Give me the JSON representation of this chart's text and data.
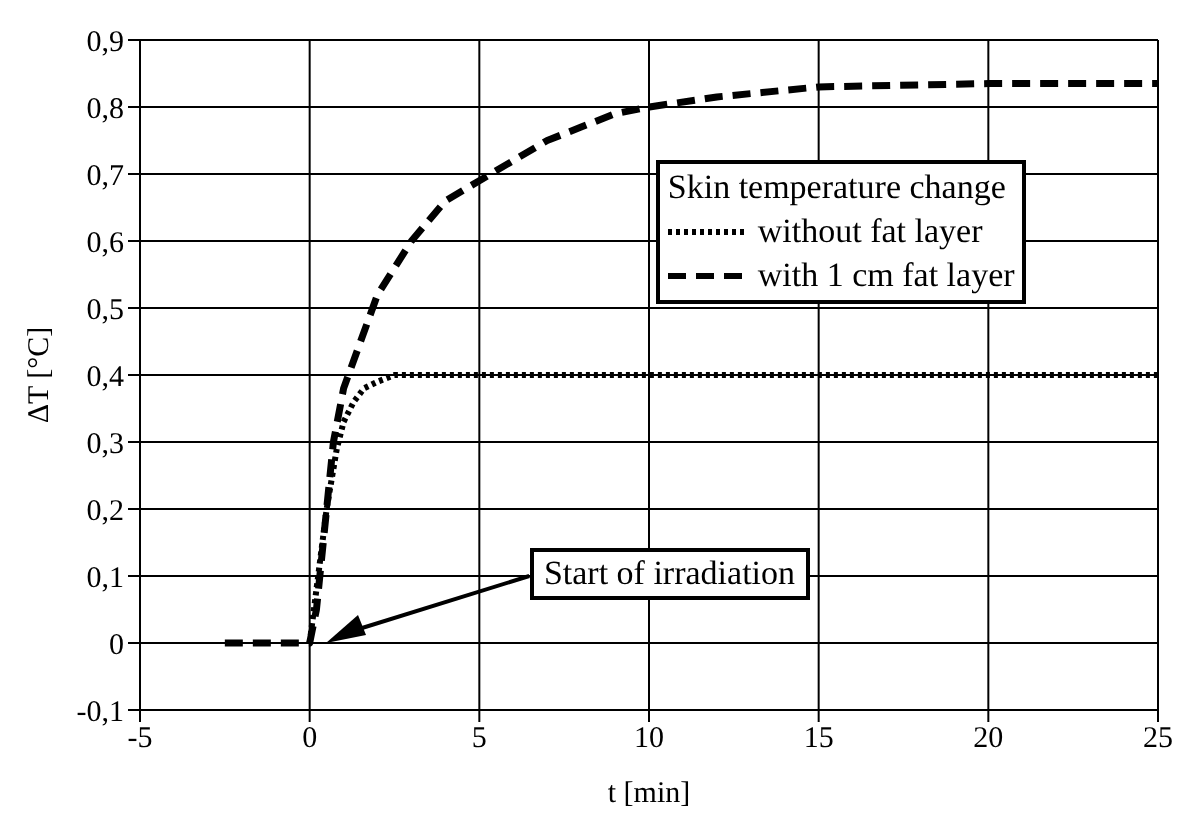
{
  "chart_data": {
    "type": "line",
    "xlabel": "t [min]",
    "ylabel": "ΔT [°C]",
    "legend_title": "Skin temperature change",
    "legend": "right",
    "grid": true,
    "marker": "none",
    "xlim": [
      -5,
      25
    ],
    "xticks": [
      -5,
      0,
      5,
      10,
      15,
      20,
      25
    ],
    "ylim": [
      -0.1,
      0.9
    ],
    "yticks": [
      {
        "value": -0.1,
        "label": "-0,1"
      },
      {
        "value": 0,
        "label": "0"
      },
      {
        "value": 0.1,
        "label": "0,1"
      },
      {
        "value": 0.2,
        "label": "0,2"
      },
      {
        "value": 0.3,
        "label": "0,3"
      },
      {
        "value": 0.4,
        "label": "0,4"
      },
      {
        "value": 0.5,
        "label": "0,5"
      },
      {
        "value": 0.6,
        "label": "0,6"
      },
      {
        "value": 0.7,
        "label": "0,7"
      },
      {
        "value": 0.8,
        "label": "0,8"
      },
      {
        "value": 0.9,
        "label": "0,9"
      }
    ],
    "annotations": [
      "Start of irradiation"
    ],
    "series": [
      {
        "name": "without fat layer",
        "color": "#000000",
        "line_style": "dotted",
        "x": [
          0,
          0.2,
          0.5,
          0.8,
          1,
          1.3,
          1.6,
          2,
          2.5,
          3,
          5,
          10,
          15,
          20,
          25
        ],
        "values": [
          0,
          0.08,
          0.2,
          0.29,
          0.33,
          0.36,
          0.38,
          0.39,
          0.4,
          0.4,
          0.4,
          0.4,
          0.4,
          0.4,
          0.4
        ]
      },
      {
        "name": "with 1 cm fat layer",
        "color": "#000000",
        "line_style": "dashed",
        "x": [
          -2.5,
          0,
          0.2,
          0.5,
          0.7,
          1,
          1.5,
          2,
          2.5,
          3,
          4,
          5,
          6,
          7,
          8,
          9,
          10,
          12,
          15,
          20,
          25
        ],
        "values": [
          0,
          0,
          0.05,
          0.2,
          0.3,
          0.38,
          0.45,
          0.52,
          0.56,
          0.6,
          0.66,
          0.69,
          0.72,
          0.75,
          0.77,
          0.79,
          0.8,
          0.815,
          0.83,
          0.835,
          0.835
        ]
      }
    ]
  }
}
